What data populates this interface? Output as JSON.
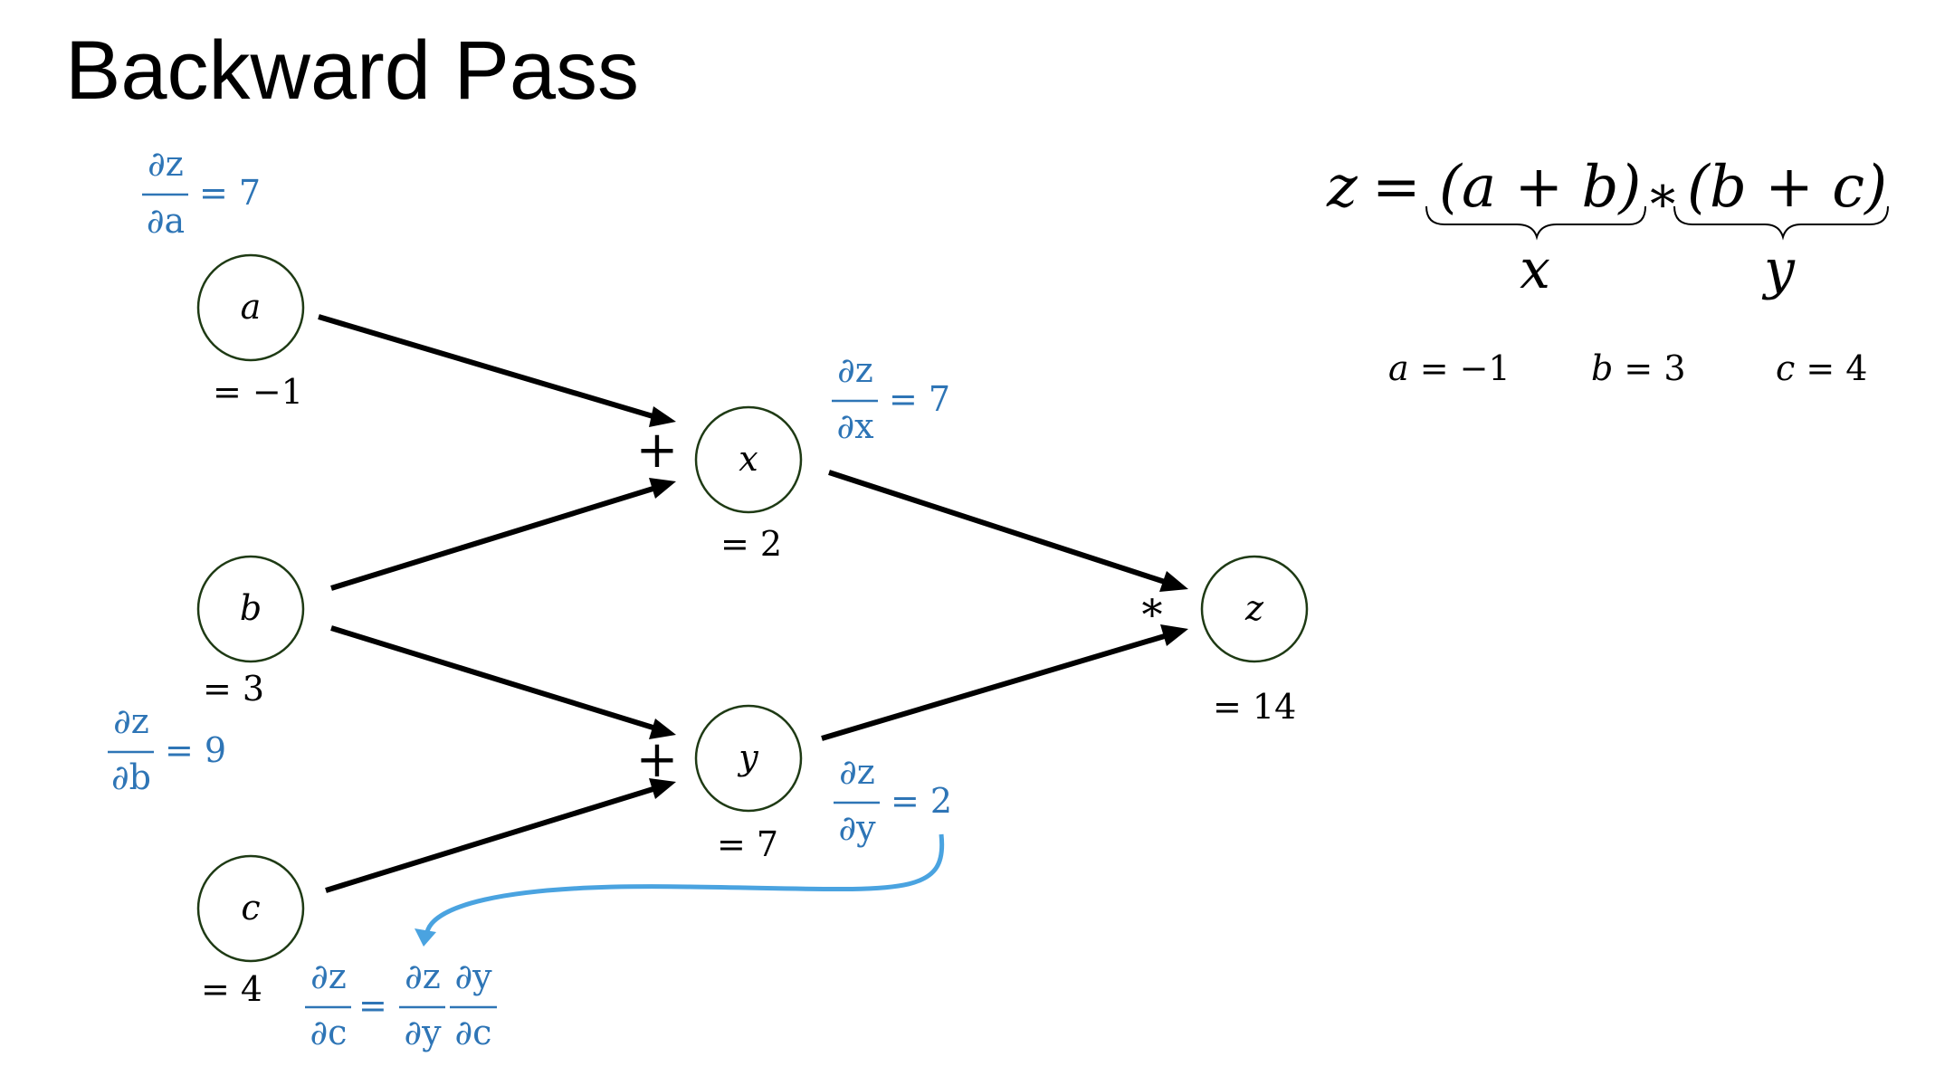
{
  "title": "Backward Pass",
  "colors": {
    "ink": "#000000",
    "gradient": "#2e75b6",
    "flow_arrow": "#4aa3e0",
    "node_border": "#1e3a14"
  },
  "formula": {
    "lhs": "z",
    "eq": "=",
    "group1": "(a + b)",
    "op": "∗",
    "group2": "(b + c)",
    "brace1_label": "x",
    "brace2_label": "y",
    "inputs": [
      {
        "var": "a",
        "text": " = −1"
      },
      {
        "var": "b",
        "text": " = 3"
      },
      {
        "var": "c",
        "text": " = 4"
      }
    ]
  },
  "nodes": {
    "a": {
      "label": "a",
      "value": "= −1"
    },
    "b": {
      "label": "b",
      "value": "= 3"
    },
    "c": {
      "label": "c",
      "value": "= 4"
    },
    "x": {
      "label": "x",
      "value": "= 2",
      "op": "+"
    },
    "y": {
      "label": "y",
      "value": "= 7",
      "op": "+"
    },
    "z": {
      "label": "z",
      "value": "= 14",
      "op": "*"
    }
  },
  "gradients": {
    "da": {
      "num": "∂z",
      "den": "∂a",
      "eq": "= 7"
    },
    "db": {
      "num": "∂z",
      "den": "∂b",
      "eq": "= 9"
    },
    "dx": {
      "num": "∂z",
      "den": "∂x",
      "eq": "= 7"
    },
    "dy": {
      "num": "∂z",
      "den": "∂y",
      "eq": "= 2"
    },
    "dc": {
      "num": "∂z",
      "den": "∂c",
      "eq": "=",
      "f1_num": "∂z",
      "f1_den": "∂y",
      "f2_num": "∂y",
      "f2_den": "∂c"
    }
  }
}
